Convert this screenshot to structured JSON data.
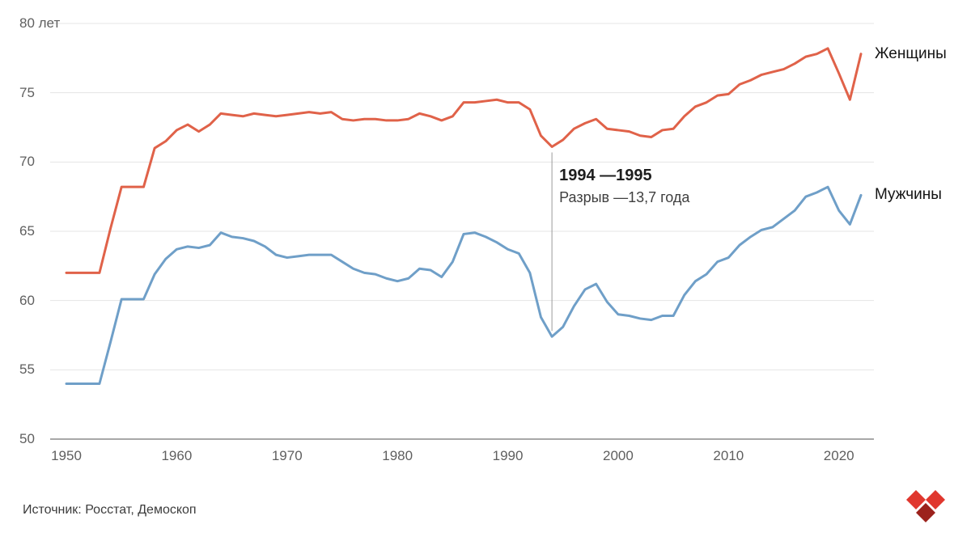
{
  "chart_data": {
    "type": "line",
    "title": "",
    "y_axis": {
      "range": [
        50,
        80
      ],
      "ticks": [
        50,
        55,
        60,
        65,
        70,
        75,
        80
      ],
      "tick_labels": [
        "50",
        "55",
        "60",
        "65",
        "70",
        "75",
        "80 лет"
      ]
    },
    "x_axis": {
      "range": [
        1950,
        2022
      ],
      "ticks": [
        1950,
        1960,
        1970,
        1980,
        1990,
        2000,
        2010,
        2020
      ],
      "tick_labels": [
        "1950",
        "1960",
        "1970",
        "1980",
        "1990",
        "2000",
        "2010",
        "2020"
      ]
    },
    "grid": true,
    "legend_position": "line-end-labels",
    "years": [
      1950,
      1951,
      1952,
      1953,
      1954,
      1955,
      1956,
      1957,
      1958,
      1959,
      1960,
      1961,
      1962,
      1963,
      1964,
      1965,
      1966,
      1967,
      1968,
      1969,
      1970,
      1971,
      1972,
      1973,
      1974,
      1975,
      1976,
      1977,
      1978,
      1979,
      1980,
      1981,
      1982,
      1983,
      1984,
      1985,
      1986,
      1987,
      1988,
      1989,
      1990,
      1991,
      1992,
      1993,
      1994,
      1995,
      1996,
      1997,
      1998,
      1999,
      2000,
      2001,
      2002,
      2003,
      2004,
      2005,
      2006,
      2007,
      2008,
      2009,
      2010,
      2011,
      2012,
      2013,
      2014,
      2015,
      2016,
      2017,
      2018,
      2019,
      2020,
      2021,
      2022
    ],
    "series": [
      {
        "name": "Женщины",
        "color": "#e06249",
        "values": [
          62.0,
          62.0,
          62.0,
          62.0,
          65.2,
          68.2,
          68.2,
          68.2,
          71.0,
          71.5,
          72.3,
          72.7,
          72.2,
          72.7,
          73.5,
          73.4,
          73.3,
          73.5,
          73.4,
          73.3,
          73.4,
          73.5,
          73.6,
          73.5,
          73.6,
          73.1,
          73.0,
          73.1,
          73.1,
          73.0,
          73.0,
          73.1,
          73.5,
          73.3,
          73.0,
          73.3,
          74.3,
          74.3,
          74.4,
          74.5,
          74.3,
          74.3,
          73.8,
          71.9,
          71.1,
          71.6,
          72.4,
          72.8,
          73.1,
          72.4,
          72.3,
          72.2,
          71.9,
          71.8,
          72.3,
          72.4,
          73.3,
          74.0,
          74.3,
          74.8,
          74.9,
          75.6,
          75.9,
          76.3,
          76.5,
          76.7,
          77.1,
          77.6,
          77.8,
          78.2,
          76.4,
          74.5,
          77.8
        ]
      },
      {
        "name": "Мужчины",
        "color": "#6f9fc8",
        "values": [
          54.0,
          54.0,
          54.0,
          54.0,
          57.0,
          60.1,
          60.1,
          60.1,
          61.9,
          63.0,
          63.7,
          63.9,
          63.8,
          64.0,
          64.9,
          64.6,
          64.5,
          64.3,
          63.9,
          63.3,
          63.1,
          63.2,
          63.3,
          63.3,
          63.3,
          62.8,
          62.3,
          62.0,
          61.9,
          61.6,
          61.4,
          61.6,
          62.3,
          62.2,
          61.7,
          62.8,
          64.8,
          64.9,
          64.6,
          64.2,
          63.7,
          63.4,
          62.0,
          58.8,
          57.4,
          58.1,
          59.6,
          60.8,
          61.2,
          59.9,
          59.0,
          58.9,
          58.7,
          58.6,
          58.9,
          58.9,
          60.4,
          61.4,
          61.9,
          62.8,
          63.1,
          64.0,
          64.6,
          65.1,
          65.3,
          65.9,
          66.5,
          67.5,
          67.8,
          68.2,
          66.5,
          65.5,
          67.6
        ]
      }
    ],
    "annotation": {
      "year": 1994,
      "title": "1994 —1995",
      "subtitle": "Разрыв —13,7 года",
      "line_color": "#9a9a9a"
    },
    "colors": {
      "grid": "#e4e4e4",
      "baseline": "#8c8c8c",
      "background": "#ffffff"
    }
  },
  "footer": {
    "source": "Источник: Росстат, Демоскоп"
  },
  "logo": {
    "name": "heart-diamonds-logo",
    "color_primary": "#e0372e",
    "color_dark": "#9c221c"
  }
}
